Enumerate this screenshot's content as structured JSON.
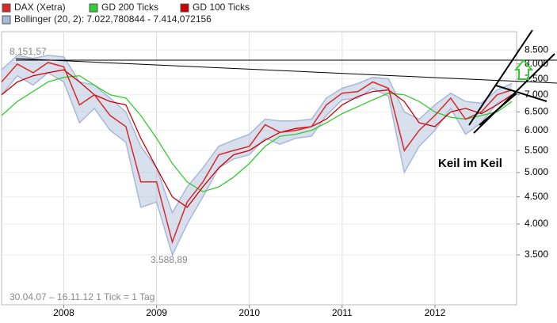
{
  "chart_data": {
    "type": "line",
    "log_y": true,
    "x": [
      2007.33,
      2007.5,
      2007.67,
      2007.83,
      2008,
      2008.17,
      2008.33,
      2008.5,
      2008.67,
      2008.83,
      2009,
      2009.17,
      2009.33,
      2009.5,
      2009.67,
      2009.83,
      2010,
      2010.17,
      2010.33,
      2010.5,
      2010.67,
      2010.83,
      2011,
      2011.17,
      2011.33,
      2011.5,
      2011.67,
      2011.83,
      2012,
      2012.17,
      2012.33,
      2012.5,
      2012.67,
      2012.83
    ],
    "series": [
      {
        "name": "DAX (Xetra)",
        "color": "#d42a2a",
        "values": [
          7400,
          8000,
          7700,
          8050,
          7900,
          6700,
          7000,
          6400,
          6100,
          4800,
          4800,
          3700,
          4400,
          4800,
          5400,
          5500,
          5600,
          6150,
          5950,
          6000,
          6100,
          6700,
          7050,
          7100,
          7400,
          7200,
          5500,
          6000,
          6400,
          6900,
          6300,
          6500,
          7000,
          7150
        ]
      },
      {
        "name": "GD 200 Ticks",
        "color": "#33cc33",
        "values": [
          6400,
          6800,
          7100,
          7400,
          7550,
          7600,
          7300,
          7000,
          6900,
          6400,
          5800,
          5200,
          4800,
          4600,
          4700,
          4900,
          5200,
          5600,
          5850,
          5900,
          6000,
          6200,
          6450,
          6650,
          6850,
          7050,
          7000,
          6800,
          6500,
          6350,
          6300,
          6400,
          6500,
          6800
        ]
      },
      {
        "name": "GD 100 Ticks",
        "color": "#cc0000",
        "values": [
          7000,
          7400,
          7600,
          7700,
          7800,
          7400,
          7000,
          6800,
          6700,
          5800,
          5100,
          4500,
          4300,
          4700,
          5100,
          5400,
          5500,
          5750,
          5950,
          6050,
          6100,
          6300,
          6700,
          6950,
          7100,
          7150,
          6800,
          6200,
          6100,
          6500,
          6600,
          6450,
          6700,
          7000
        ]
      }
    ],
    "band": {
      "name": "Bollinger (20, 2): 7.022,780844 - 7.414,072156",
      "color": "#a8b8d8",
      "upper": [
        7800,
        8300,
        8200,
        8300,
        8250,
        7400,
        7300,
        6900,
        6500,
        5600,
        5100,
        4200,
        4700,
        5100,
        5600,
        5750,
        5900,
        6300,
        6250,
        6250,
        6300,
        6900,
        7200,
        7350,
        7550,
        7500,
        6500,
        6300,
        6700,
        7050,
        6800,
        6750,
        7150,
        7350
      ],
      "lower": [
        7000,
        7600,
        7300,
        7700,
        7400,
        6200,
        6600,
        6000,
        5700,
        4300,
        4400,
        3500,
        4000,
        4500,
        5100,
        5300,
        5400,
        5800,
        5650,
        5800,
        5850,
        6400,
        6850,
        6900,
        7200,
        6950,
        5000,
        5600,
        6000,
        6600,
        5900,
        6200,
        6750,
        6950
      ]
    },
    "xlim": [
      2007.33,
      2012.88
    ],
    "xticks": [
      2008,
      2009,
      2010,
      2011,
      2012
    ],
    "ylim": [
      2820,
      9200
    ],
    "yticks": [
      {
        "value": 3500,
        "label": "3.500"
      },
      {
        "value": 4000,
        "label": "4.000"
      },
      {
        "value": 4500,
        "label": "4.500"
      },
      {
        "value": 5000,
        "label": "5.000"
      },
      {
        "value": 5500,
        "label": "5.500"
      },
      {
        "value": 6000,
        "label": "6.000"
      },
      {
        "value": 6500,
        "label": "6.500"
      },
      {
        "value": 7000,
        "label": "7.000"
      },
      {
        "value": 7500,
        "label": "7.500"
      },
      {
        "value": 8000,
        "label": "8.000"
      },
      {
        "value": 8500,
        "label": "8.500"
      }
    ],
    "grid": true,
    "annotations": [
      "8.151,57",
      "3.588,89",
      "30.04.07 – 16.11.12   1 Tick = 1 Tag",
      "Keil im Keil"
    ]
  }
}
